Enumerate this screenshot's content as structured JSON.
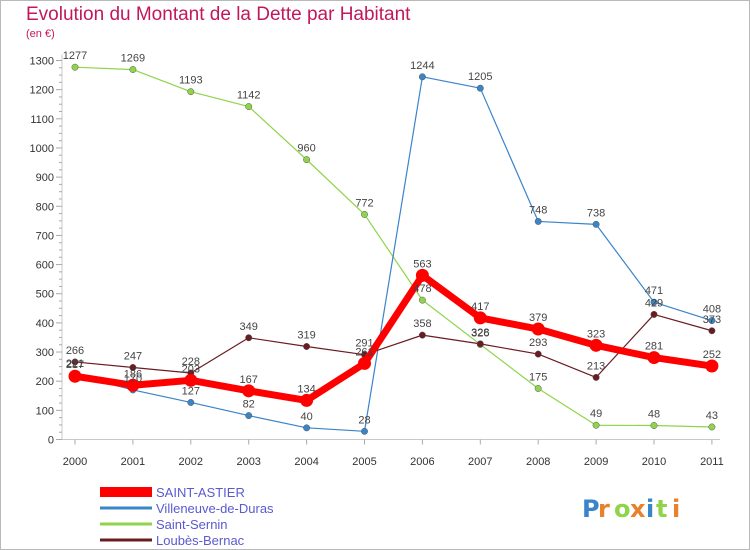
{
  "title": "Evolution du Montant de la Dette par Habitant",
  "unit_label": "(en €)",
  "logo": "Proxiti",
  "chart_data": {
    "type": "line",
    "title": "Evolution du Montant de la Dette par Habitant",
    "ylabel": "(en €)",
    "xlabel": "",
    "ylim": [
      0,
      1300
    ],
    "yticks": [
      0,
      100,
      200,
      300,
      400,
      500,
      600,
      700,
      800,
      900,
      1000,
      1100,
      1200,
      1300
    ],
    "categories": [
      "2000",
      "2001",
      "2002",
      "2003",
      "2004",
      "2005",
      "2006",
      "2007",
      "2008",
      "2009",
      "2010",
      "2011"
    ],
    "grid": false,
    "legend_position": "bottom-left",
    "series": [
      {
        "name": "SAINT-ASTIER",
        "color": "#ff0000",
        "values": [
          217,
          186,
          203,
          167,
          134,
          261,
          563,
          417,
          379,
          323,
          281,
          252
        ]
      },
      {
        "name": "Villeneuve-de-Duras",
        "color": "#3a84c9",
        "values": [
          221,
          170,
          127,
          82,
          40,
          28,
          1244,
          1205,
          748,
          738,
          471,
          408
        ]
      },
      {
        "name": "Saint-Sernin",
        "color": "#8fd44a",
        "values": [
          1277,
          1269,
          1193,
          1142,
          960,
          772,
          478,
          326,
          175,
          49,
          48,
          43
        ]
      },
      {
        "name": "Loubès-Bernac",
        "color": "#6b1c22",
        "values": [
          266,
          247,
          228,
          349,
          319,
          291,
          358,
          328,
          293,
          213,
          429,
          373
        ]
      }
    ]
  }
}
